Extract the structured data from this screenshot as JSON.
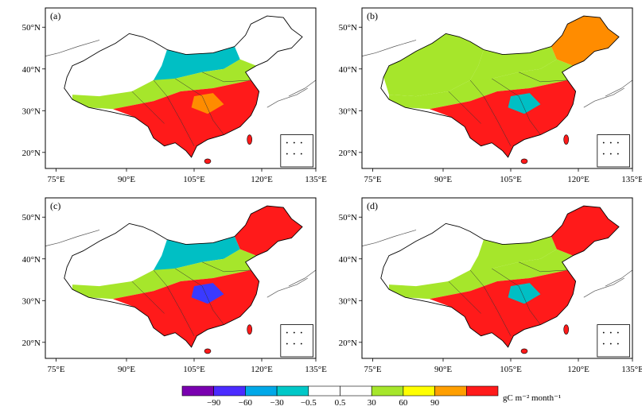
{
  "panels": [
    {
      "label": "(a)",
      "palette": [
        "#ffffff",
        "#00bfc4",
        "#a6e62b",
        "#ff1a1a",
        "#ff8c00"
      ]
    },
    {
      "label": "(b)",
      "palette": [
        "#ffffff",
        "#a6e62b",
        "#00bfc4",
        "#ff1a1a",
        "#ff8c00"
      ]
    },
    {
      "label": "(c)",
      "palette": [
        "#ffffff",
        "#00bfc4",
        "#3a3aff",
        "#a6e62b",
        "#ff1a1a"
      ]
    },
    {
      "label": "(d)",
      "palette": [
        "#ffffff",
        "#00bfc4",
        "#a6e62b",
        "#ff1a1a",
        "#ff8c00"
      ]
    }
  ],
  "axes": {
    "lon_ticks": [
      "75°E",
      "90°E",
      "105°E",
      "120°E",
      "135°E"
    ],
    "lat_ticks": [
      "50°N",
      "40°N",
      "30°N",
      "20°N"
    ]
  },
  "colorbar": {
    "colors": [
      "#7a00b0",
      "#4b2bff",
      "#00a8e8",
      "#00c8c8",
      "#ffffff",
      "#ffffff",
      "#a6e62b",
      "#ffff00",
      "#ff9f00",
      "#ff1a1a"
    ],
    "labels": [
      "−90",
      "−60",
      "−30",
      "−0.5",
      "0.5",
      "30",
      "60",
      "90"
    ],
    "unit": "gC m⁻² month⁻¹"
  }
}
